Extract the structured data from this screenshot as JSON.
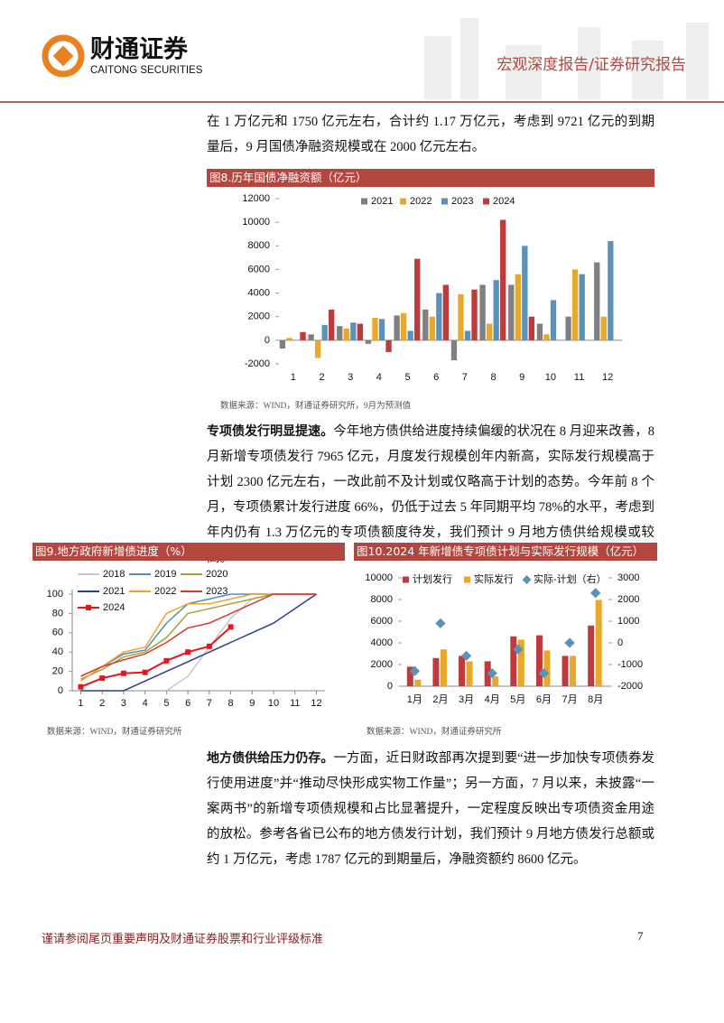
{
  "header": {
    "company": "财通证券",
    "company_en": "CAITONG SECURITIES",
    "report_type": "宏观深度报告/证券研究报告"
  },
  "paragraphs": [
    {
      "text": "在 1 万亿元和 1750 亿元左右，合计约 1.17 万亿元，考虑到 9721 亿元的到期量后，9 月国债净融资规模或在 2000 亿元左右。"
    },
    {
      "lead": "专项债发行明显提速。",
      "text": "今年地方债供给进度持续偏缓的状况在 8 月迎来改善，8 月新增专项债发行 7965 亿元，月度发行规模创年内新高，实际发行规模高于计划 2300 亿元左右，一改此前不及计划或仅略高于计划的态势。今年前 8 个月，专项债累计发行进度 66%，仍低于过去 5 年同期平均 78%的水平，考虑到年内仍有 1.3 万亿元的专项债额度待发，我们预计 9 月地方债供给规模或较高。"
    },
    {
      "lead": "地方债供给压力仍存。",
      "text": "一方面，近日财政部再次提到要“进一步加快专项债券发行使用进度”并“推动尽快形成实物工作量”；另一方面，7 月以来，未披露“一案两书”的新增专项债规模和占比显著提升，一定程度反映出专项债资金用途的放松。参考各省已公布的地方债发行计划，我们预计 9 月地方债发行总额或约 1 万亿元，考虑 1787 亿元的到期量后，净融资额约 8600 亿元。"
    }
  ],
  "chart_data": [
    {
      "type": "bar",
      "title": "图8.历年国债净融资额（亿元）",
      "source": "数据来源：WIND，财通证券研究所，9月为预测值",
      "categories": [
        "1",
        "2",
        "3",
        "4",
        "5",
        "6",
        "7",
        "8",
        "9",
        "10",
        "11",
        "12"
      ],
      "series": [
        {
          "name": "2021",
          "color": "#808080",
          "values": [
            -700,
            500,
            1200,
            -300,
            2100,
            2600,
            -1700,
            4700,
            4700,
            1400,
            2000,
            6600
          ]
        },
        {
          "name": "2022",
          "color": "#e8a82a",
          "values": [
            200,
            -1500,
            1000,
            1900,
            2300,
            2000,
            3900,
            1400,
            5600,
            500,
            6000,
            2000
          ]
        },
        {
          "name": "2023",
          "color": "#5b93b8",
          "values": [
            0,
            1300,
            1500,
            1800,
            800,
            4000,
            800,
            5100,
            8000,
            3400,
            5600,
            8400
          ]
        },
        {
          "name": "2024",
          "color": "#c0393b",
          "values": [
            700,
            2600,
            1400,
            -1000,
            6900,
            4700,
            4300,
            10200,
            2000,
            null,
            null,
            null
          ]
        }
      ],
      "ylim": [
        -2000,
        12000
      ],
      "yticks": [
        -2000,
        0,
        2000,
        4000,
        6000,
        8000,
        10000,
        12000
      ],
      "grid": false,
      "legend": "top"
    },
    {
      "type": "line",
      "title": "图9.地方政府新增债进度（%）",
      "source": "数据来源：WIND，财通证券研究所",
      "x": [
        1,
        2,
        3,
        4,
        5,
        6,
        7,
        8,
        9,
        10,
        11,
        12
      ],
      "series": [
        {
          "name": "2018",
          "color": "#c8c8c8",
          "values": [
            null,
            null,
            null,
            null,
            0,
            15,
            45,
            75,
            95,
            100,
            100,
            100
          ]
        },
        {
          "name": "2019",
          "color": "#4f8fb0",
          "values": [
            15,
            25,
            38,
            42,
            70,
            90,
            95,
            100,
            100,
            100,
            100,
            100
          ]
        },
        {
          "name": "2020",
          "color": "#a3a23a",
          "values": [
            12,
            22,
            35,
            40,
            55,
            80,
            85,
            90,
            95,
            100,
            100,
            100
          ]
        },
        {
          "name": "2021",
          "color": "#2e3d8f",
          "values": [
            0,
            0,
            0,
            10,
            20,
            30,
            40,
            50,
            60,
            70,
            85,
            100
          ]
        },
        {
          "name": "2022",
          "color": "#f0a030",
          "values": [
            10,
            25,
            40,
            45,
            80,
            90,
            90,
            95,
            100,
            100,
            100,
            100
          ]
        },
        {
          "name": "2023",
          "color": "#d83a30",
          "values": [
            15,
            25,
            32,
            38,
            50,
            65,
            70,
            80,
            90,
            100,
            100,
            100
          ]
        },
        {
          "name": "2024",
          "color": "#e8141e",
          "markers": true,
          "values": [
            4,
            13,
            18,
            19,
            31,
            40,
            46,
            66,
            null,
            null,
            null,
            null
          ]
        }
      ],
      "xlim": [
        0.6,
        12.4
      ],
      "xticks": [
        1,
        2,
        3,
        4,
        5,
        6,
        7,
        8,
        9,
        10,
        11,
        12
      ],
      "ylim": [
        0,
        100
      ],
      "yticks": [
        0,
        20,
        40,
        60,
        80,
        100
      ],
      "grid": false,
      "legend": "top-left"
    },
    {
      "type": "combo",
      "title": "图10.2024 年新增债专项债计划与实际发行规模（亿元）",
      "source": "数据来源：WIND，财通证券研究所",
      "categories": [
        "1月",
        "2月",
        "3月",
        "4月",
        "5月",
        "6月",
        "7月",
        "8月"
      ],
      "series": [
        {
          "name": "计划发行",
          "type": "bar",
          "color": "#c0393b",
          "values": [
            1800,
            2600,
            2800,
            2300,
            4600,
            4700,
            2800,
            5600
          ]
        },
        {
          "name": "实际发行",
          "type": "bar",
          "color": "#e8a82a",
          "values": [
            600,
            3400,
            2300,
            900,
            4300,
            3300,
            2800,
            7965
          ]
        },
        {
          "name": "实际-计划（右）",
          "type": "scatter",
          "axis": "y2",
          "color": "#5b93b8",
          "values": [
            -1300,
            900,
            -600,
            -1400,
            -300,
            -1400,
            0,
            2300
          ]
        }
      ],
      "ylim": [
        0,
        10000
      ],
      "yticks": [
        0,
        2000,
        4000,
        6000,
        8000,
        10000
      ],
      "y2lim": [
        -2000,
        3000
      ],
      "y2ticks": [
        -2000,
        -1000,
        0,
        1000,
        2000,
        3000
      ],
      "grid": false,
      "legend": "top"
    }
  ],
  "footer": {
    "disclaimer": "谨请参阅尾页重要声明及财通证券股票和行业评级标准",
    "page": "7"
  }
}
